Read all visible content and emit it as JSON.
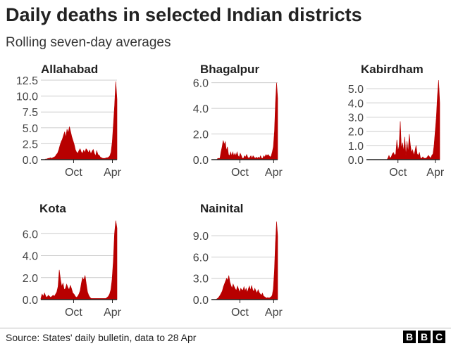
{
  "title": "Daily deaths in selected Indian districts",
  "subtitle": "Rolling seven-day averages",
  "source": "Source: States' daily bulletin, data to 28 Apr",
  "logo": "BBC",
  "colors": {
    "area": "#b80000",
    "axis": "#222222",
    "grid": "#cccccc"
  },
  "chart_data": [
    {
      "type": "area",
      "title": "Allahabad",
      "y_ticks": [
        0.0,
        2.5,
        5.0,
        7.5,
        10.0,
        12.5
      ],
      "y_tick_labels": [
        "0.0",
        "2.5",
        "5.0",
        "7.5",
        "10.0",
        "12.5"
      ],
      "ylim": [
        0,
        12.5
      ],
      "x_ticks": [
        {
          "label": "Oct",
          "pos": 0.43
        },
        {
          "label": "Apr",
          "pos": 0.94
        }
      ],
      "values": [
        0,
        0,
        0,
        0,
        0.1,
        0.1,
        0.2,
        0.2,
        0.3,
        0.2,
        0.3,
        0.4,
        0.5,
        0.8,
        1.0,
        1.5,
        2.2,
        2.8,
        3.2,
        3.8,
        4.4,
        3.5,
        4.8,
        4.2,
        5.2,
        4.4,
        3.6,
        3.0,
        2.4,
        1.6,
        1.2,
        1.0,
        1.4,
        1.7,
        1.2,
        1.0,
        1.5,
        1.1,
        1.7,
        1.5,
        1.1,
        1.5,
        0.9,
        1.3,
        1.6,
        1.0,
        0.6,
        1.4,
        0.8,
        0.7,
        0.4,
        0.3,
        0.2,
        0.2,
        0.2,
        0.3,
        0.3,
        0.4,
        0.6,
        1.2,
        2.8,
        5.5,
        8.5,
        12.3,
        9.5
      ]
    },
    {
      "type": "area",
      "title": "Bhagalpur",
      "y_ticks": [
        0.0,
        2.0,
        4.0,
        6.0
      ],
      "y_tick_labels": [
        "0.0",
        "2.0",
        "4.0",
        "6.0"
      ],
      "ylim": [
        0,
        6.2
      ],
      "x_ticks": [
        {
          "label": "Oct",
          "pos": 0.43
        },
        {
          "label": "Apr",
          "pos": 0.94
        }
      ],
      "values": [
        0,
        0,
        0,
        0,
        0,
        0,
        0.1,
        0.1,
        0.1,
        0.6,
        1.0,
        1.5,
        1.2,
        1.4,
        0.7,
        1.0,
        0.4,
        0.3,
        0.6,
        0.3,
        0.6,
        0.3,
        0.5,
        0.3,
        0.6,
        0.3,
        0.2,
        0.5,
        0.3,
        0.1,
        0.1,
        0.3,
        0.2,
        0.4,
        0.2,
        0.1,
        0.2,
        0.3,
        0.1,
        0.3,
        0.2,
        0.1,
        0.2,
        0.1,
        0.2,
        0.1,
        0.3,
        0.1,
        0.1,
        0.3,
        0.2,
        0.4,
        0.3,
        0.4,
        0.3,
        0.2,
        0.3,
        0.6,
        1.0,
        2.2,
        4.5,
        6.0,
        4.8
      ]
    },
    {
      "type": "area",
      "title": "Kabirdham",
      "y_ticks": [
        0.0,
        1.0,
        2.0,
        3.0,
        4.0,
        5.0
      ],
      "y_tick_labels": [
        "0.0",
        "1.0",
        "2.0",
        "3.0",
        "4.0",
        "5.0"
      ],
      "ylim": [
        0,
        5.6
      ],
      "x_ticks": [
        {
          "label": "Oct",
          "pos": 0.43
        },
        {
          "label": "Apr",
          "pos": 0.94
        }
      ],
      "values": [
        0,
        0,
        0,
        0,
        0,
        0,
        0,
        0,
        0,
        0,
        0,
        0,
        0,
        0,
        0,
        0,
        0,
        0,
        0,
        0.1,
        0.3,
        0.1,
        0.2,
        0.4,
        0.5,
        0.3,
        0.4,
        1.4,
        0.6,
        1.0,
        2.7,
        0.8,
        1.2,
        0.6,
        1.6,
        0.3,
        1.3,
        0.5,
        1.8,
        1.0,
        0.5,
        0.7,
        0.3,
        0.6,
        1.0,
        0.4,
        0.3,
        0.5,
        0.1,
        0.1,
        0.2,
        0.1,
        0.1,
        0.1,
        0.2,
        0.3,
        0.2,
        0.1,
        0.3,
        0.4,
        1.0,
        2.0,
        3.0,
        4.5,
        5.6,
        4.0
      ]
    },
    {
      "type": "area",
      "title": "Kota",
      "y_ticks": [
        0.0,
        2.0,
        4.0,
        6.0
      ],
      "y_tick_labels": [
        "0.0",
        "2.0",
        "4.0",
        "6.0"
      ],
      "ylim": [
        0,
        7.3
      ],
      "x_ticks": [
        {
          "label": "Oct",
          "pos": 0.43
        },
        {
          "label": "Apr",
          "pos": 0.94
        }
      ],
      "values": [
        0.1,
        0.5,
        0.3,
        0.6,
        0.3,
        0.2,
        0.4,
        0.3,
        0.2,
        0.3,
        0.4,
        0.3,
        0.5,
        0.7,
        1.2,
        2.7,
        1.8,
        1.2,
        1.5,
        0.9,
        1.0,
        1.4,
        1.1,
        0.9,
        1.3,
        1.0,
        0.6,
        0.5,
        0.3,
        0.2,
        0.3,
        0.5,
        0.8,
        1.5,
        2.0,
        1.8,
        2.2,
        1.4,
        0.7,
        0.4,
        0.2,
        0.1,
        0.1,
        0.1,
        0.1,
        0.1,
        0.1,
        0.1,
        0.1,
        0.1,
        0.1,
        0.1,
        0.1,
        0.1,
        0.2,
        0.3,
        0.5,
        0.9,
        1.8,
        3.5,
        6.0,
        7.2,
        6.5
      ]
    },
    {
      "type": "area",
      "title": "Nainital",
      "y_ticks": [
        0.0,
        3.0,
        6.0,
        9.0
      ],
      "y_tick_labels": [
        "0.0",
        "3.0",
        "6.0",
        "9.0"
      ],
      "ylim": [
        0,
        11.3
      ],
      "x_ticks": [
        {
          "label": "Oct",
          "pos": 0.43
        },
        {
          "label": "Apr",
          "pos": 0.94
        }
      ],
      "values": [
        0,
        0,
        0,
        0,
        0,
        0.1,
        0.2,
        0.4,
        0.6,
        0.9,
        1.2,
        1.8,
        2.2,
        2.6,
        3.0,
        2.7,
        3.4,
        2.5,
        2.0,
        1.6,
        2.2,
        1.8,
        1.5,
        1.3,
        1.9,
        1.5,
        1.0,
        1.6,
        1.4,
        1.3,
        1.8,
        1.2,
        1.6,
        1.0,
        1.5,
        1.9,
        1.3,
        2.0,
        1.4,
        1.1,
        1.6,
        1.2,
        0.9,
        1.4,
        1.0,
        0.8,
        0.6,
        0.9,
        0.5,
        0.4,
        0.3,
        0.2,
        0.3,
        0.2,
        0.3,
        0.4,
        0.6,
        1.5,
        4.0,
        8.0,
        11.0,
        9.0
      ]
    }
  ]
}
